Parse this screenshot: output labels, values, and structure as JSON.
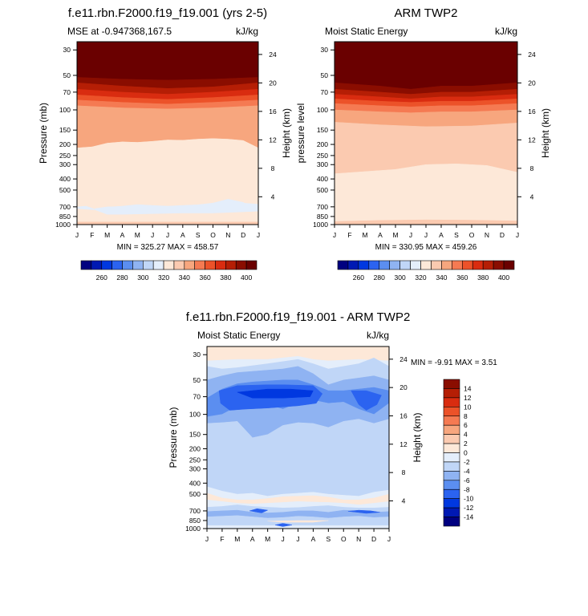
{
  "months": [
    "J",
    "F",
    "M",
    "A",
    "M",
    "J",
    "J",
    "A",
    "S",
    "O",
    "N",
    "D",
    "J"
  ],
  "pressure_ticks": [
    30,
    50,
    70,
    100,
    150,
    200,
    250,
    300,
    400,
    500,
    700,
    850,
    1000
  ],
  "height_ticks": [
    4,
    8,
    12,
    16,
    20,
    24
  ],
  "colors_mse": [
    "#000080",
    "#0019b3",
    "#0038e0",
    "#2b63f0",
    "#5b8ef0",
    "#8fb3f2",
    "#c0d6f7",
    "#e4eefb",
    "#fde8d8",
    "#fbcab0",
    "#f7a67e",
    "#f57a52",
    "#ec5229",
    "#d92c10",
    "#b51e05",
    "#8a0d00",
    "#6a0000"
  ],
  "colors_diff": [
    "#000080",
    "#0019b3",
    "#0038e0",
    "#2b63f0",
    "#5b8ef0",
    "#8fb3f2",
    "#c0d6f7",
    "#e4eefb",
    "#fde8d8",
    "#fbcab0",
    "#f7a67e",
    "#f57a52",
    "#ec5229",
    "#d92c10",
    "#b51e05",
    "#8a0d00"
  ],
  "chart_data": [
    {
      "type": "heatmap",
      "title": "f.e11.rbn.F2000.f19_f19.001 (yrs 2-5)",
      "subtitle_left": "MSE at -0.947368,167.5",
      "subtitle_right": "kJ/kg",
      "ylabel": "Pressure (mb)",
      "ylabel_right": "Height (km)",
      "stats": "MIN = 325.27 MAX = 458.57",
      "colorbar_labels": [
        "260",
        "280",
        "300",
        "320",
        "340",
        "360",
        "380",
        "400"
      ],
      "colorbar_levels": [
        250,
        260,
        270,
        280,
        290,
        300,
        310,
        320,
        330,
        340,
        350,
        360,
        370,
        380,
        390,
        400,
        410
      ],
      "min": 325.27,
      "max": 458.57
    },
    {
      "type": "heatmap",
      "title": "ARM TWP2",
      "subtitle_left": "Moist Static Energy",
      "subtitle_right": "kJ/kg",
      "ylabel": "pressure level",
      "ylabel_right": "Height (km)",
      "stats": "MIN = 330.95 MAX = 459.26",
      "colorbar_labels": [
        "260",
        "280",
        "300",
        "320",
        "340",
        "360",
        "380",
        "400"
      ],
      "colorbar_levels": [
        250,
        260,
        270,
        280,
        290,
        300,
        310,
        320,
        330,
        340,
        350,
        360,
        370,
        380,
        390,
        400,
        410
      ],
      "min": 330.95,
      "max": 459.26
    },
    {
      "type": "heatmap",
      "title": "f.e11.rbn.F2000.f19_f19.001 - ARM TWP2",
      "subtitle_left": "Moist Static Energy",
      "subtitle_right": "kJ/kg",
      "ylabel": "Pressure (mb)",
      "ylabel_right": "Height (km)",
      "stats": "MIN =  -9.91 MAX =   3.51",
      "colorbar_labels": [
        "14",
        "12",
        "10",
        "8",
        "6",
        "4",
        "2",
        "0",
        "-2",
        "-4",
        "-6",
        "-8",
        "-10",
        "-12",
        "-14"
      ],
      "colorbar_levels": [
        -14,
        -12,
        -10,
        -8,
        -6,
        -4,
        -2,
        0,
        2,
        4,
        6,
        8,
        10,
        12,
        14
      ],
      "min": -9.91,
      "max": 3.51
    }
  ]
}
